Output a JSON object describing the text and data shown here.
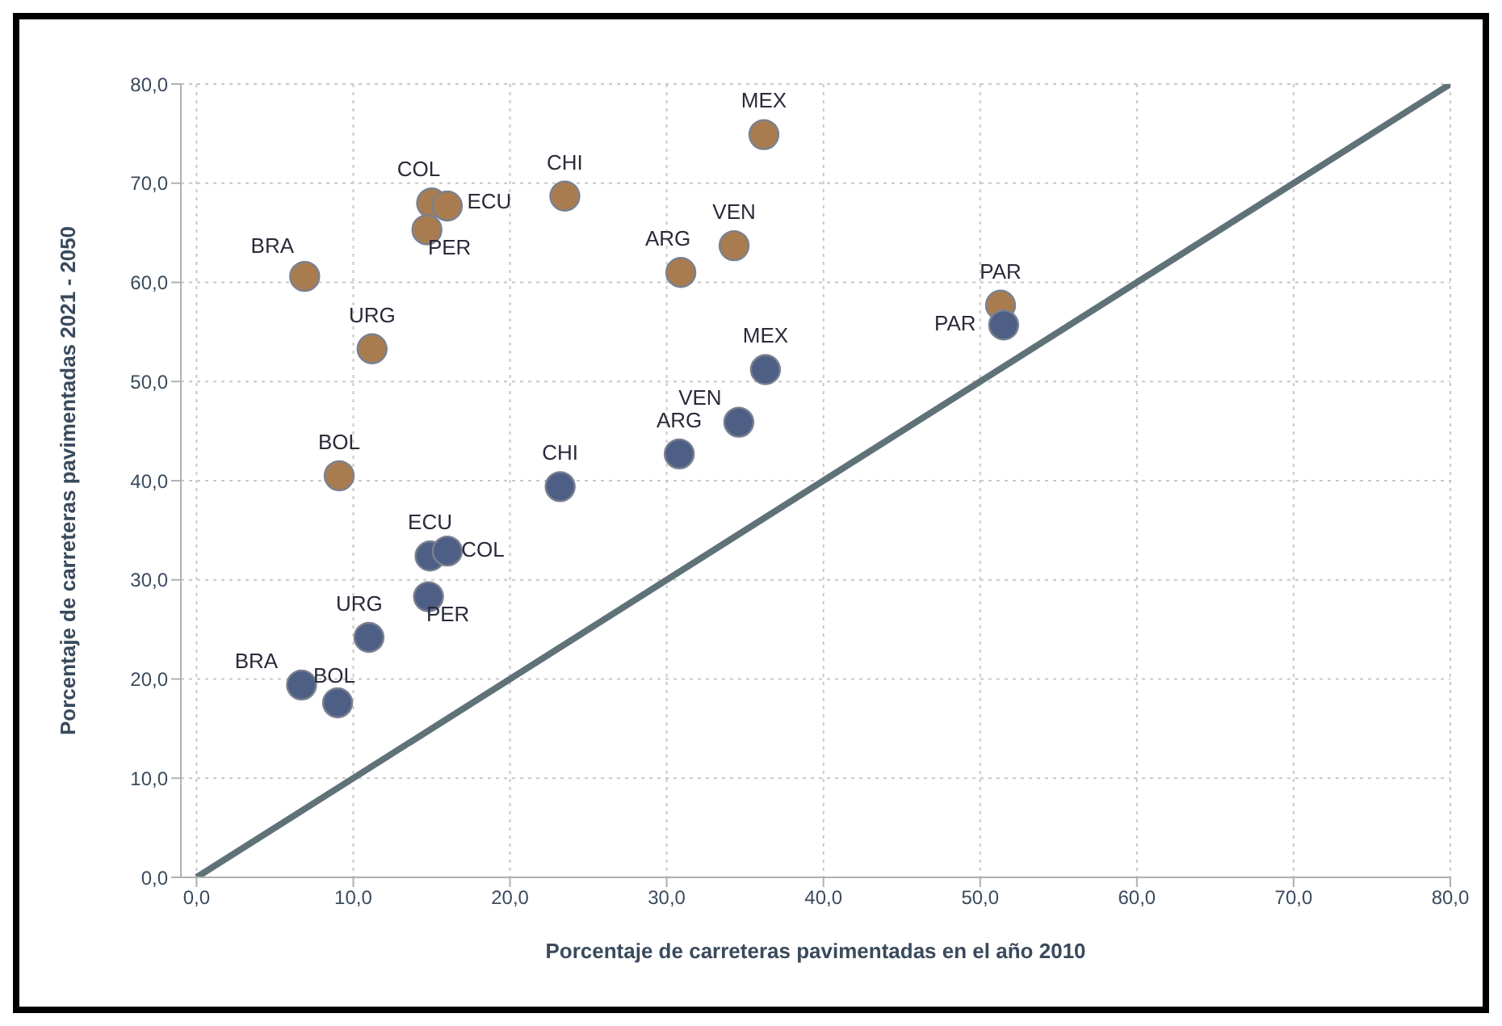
{
  "chart_data": {
    "type": "scatter",
    "xlabel": "Porcentaje de carreteras pavimentadas en el año 2010",
    "ylabel": "Porcentaje de carreteras pavimentadas 2021 - 2050",
    "xlim": [
      -1,
      80
    ],
    "ylim": [
      0,
      80
    ],
    "xticks": [
      {
        "value": 0,
        "label": "0,0"
      },
      {
        "value": 10,
        "label": "10,0"
      },
      {
        "value": 20,
        "label": "20,0"
      },
      {
        "value": 30,
        "label": "30,0"
      },
      {
        "value": 40,
        "label": "40,0"
      },
      {
        "value": 50,
        "label": "50,0"
      },
      {
        "value": 60,
        "label": "60,0"
      },
      {
        "value": 70,
        "label": "70,0"
      },
      {
        "value": 80,
        "label": "80,0"
      }
    ],
    "yticks": [
      {
        "value": 0,
        "label": "0,0"
      },
      {
        "value": 10,
        "label": "10,0"
      },
      {
        "value": 20,
        "label": "20,0"
      },
      {
        "value": 30,
        "label": "30,0"
      },
      {
        "value": 40,
        "label": "40,0"
      },
      {
        "value": 50,
        "label": "50,0"
      },
      {
        "value": 60,
        "label": "60,0"
      },
      {
        "value": 70,
        "label": "70,0"
      },
      {
        "value": 80,
        "label": "80,0"
      }
    ],
    "grid": true,
    "marker": "circle",
    "series": [
      {
        "color": "#a97c50",
        "x": [
          6.9,
          15.0,
          16.0,
          14.7,
          23.5,
          11.2,
          9.1,
          30.9,
          34.3,
          36.2,
          51.3
        ],
        "values": [
          60.6,
          68.0,
          67.7,
          65.3,
          68.7,
          53.3,
          40.5,
          61.0,
          63.7,
          74.9,
          57.7
        ]
      },
      {
        "color": "#4e5f85",
        "x": [
          6.7,
          9.0,
          11.0,
          14.8,
          14.9,
          16.0,
          23.2,
          30.8,
          34.6,
          36.3,
          51.5
        ],
        "values": [
          19.4,
          17.6,
          24.2,
          28.3,
          32.4,
          32.9,
          39.4,
          42.7,
          45.9,
          51.2,
          55.7
        ]
      },
      {
        "type": "line",
        "color": "#5f7278",
        "x": [
          0,
          80
        ],
        "values": [
          0,
          80
        ],
        "marker": "none"
      }
    ],
    "annotations": [
      {
        "text": "BRA",
        "x": 6.9,
        "y": 60.6
      },
      {
        "text": "COL",
        "x": 15.0,
        "y": 68.0
      },
      {
        "text": "ECU",
        "x": 16.0,
        "y": 67.7
      },
      {
        "text": "PER",
        "x": 14.7,
        "y": 65.3
      },
      {
        "text": "CHI",
        "x": 23.5,
        "y": 68.7
      },
      {
        "text": "URG",
        "x": 11.2,
        "y": 53.3
      },
      {
        "text": "BOL",
        "x": 9.1,
        "y": 40.5
      },
      {
        "text": "ARG",
        "x": 30.9,
        "y": 61.0
      },
      {
        "text": "VEN",
        "x": 34.3,
        "y": 63.7
      },
      {
        "text": "MEX",
        "x": 36.2,
        "y": 74.9
      },
      {
        "text": "PAR",
        "x": 51.3,
        "y": 57.7
      },
      {
        "text": "BRA",
        "x": 6.7,
        "y": 19.4
      },
      {
        "text": "BOL",
        "x": 9.0,
        "y": 17.6
      },
      {
        "text": "URG",
        "x": 11.0,
        "y": 24.2
      },
      {
        "text": "PER",
        "x": 14.8,
        "y": 28.3
      },
      {
        "text": "ECU",
        "x": 14.9,
        "y": 32.4
      },
      {
        "text": "COL",
        "x": 16.0,
        "y": 32.9
      },
      {
        "text": "CHI",
        "x": 23.2,
        "y": 39.4
      },
      {
        "text": "ARG",
        "x": 30.8,
        "y": 42.7
      },
      {
        "text": "VEN",
        "x": 34.6,
        "y": 45.9
      },
      {
        "text": "MEX",
        "x": 36.3,
        "y": 51.2
      },
      {
        "text": "PAR",
        "x": 51.5,
        "y": 55.7
      }
    ]
  }
}
